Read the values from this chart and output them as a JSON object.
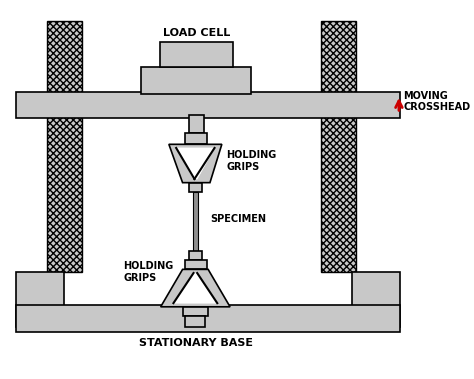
{
  "fig_width": 4.74,
  "fig_height": 3.79,
  "dpi": 100,
  "bg_color": "#ffffff",
  "gray_fill": "#c8c8c8",
  "outline_color": "#000000",
  "arrow_color": "#cc0000",
  "labels": {
    "load_cell": "LOAD CELL",
    "moving_crosshead": "MOVING\nCROSSHEAD",
    "holding_grips_top": "HOLDING\nGRIPS",
    "specimen": "SPECIMEN",
    "holding_grips_bottom": "HOLDING\nGRIPS",
    "stationary_base": "STATIONARY BASE"
  },
  "font_size": 7,
  "font_weight": "bold"
}
